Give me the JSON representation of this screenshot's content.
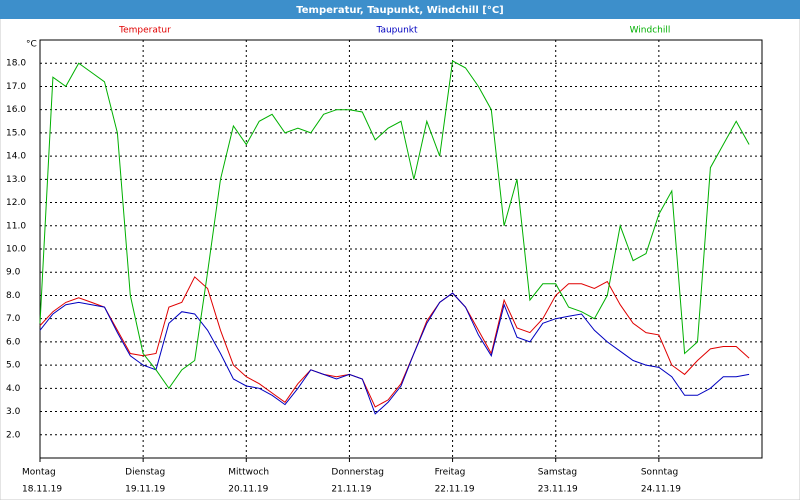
{
  "chart_data": {
    "type": "line",
    "title": "Temperatur, Taupunkt, Windchill [°C]",
    "y_unit_label": "°C",
    "categories": [
      "Montag",
      null,
      null,
      null,
      null,
      null,
      null,
      null,
      "Dienstag",
      null,
      null,
      null,
      null,
      null,
      null,
      null,
      "Mittwoch",
      null,
      null,
      null,
      null,
      null,
      null,
      null,
      "Donnerstag",
      null,
      null,
      null,
      null,
      null,
      null,
      null,
      "Freitag",
      null,
      null,
      null,
      null,
      null,
      null,
      null,
      "Samstag",
      null,
      null,
      null,
      null,
      null,
      null,
      null,
      "Sonntag",
      null,
      null,
      null,
      null,
      null,
      null,
      null
    ],
    "category_dates": [
      "18.11.19",
      null,
      null,
      null,
      null,
      null,
      null,
      null,
      "19.11.19",
      null,
      null,
      null,
      null,
      null,
      null,
      null,
      "20.11.19",
      null,
      null,
      null,
      null,
      null,
      null,
      null,
      "21.11.19",
      null,
      null,
      null,
      null,
      null,
      null,
      null,
      "22.11.19",
      null,
      null,
      null,
      null,
      null,
      null,
      null,
      "23.11.19",
      null,
      null,
      null,
      null,
      null,
      null,
      null,
      "24.11.19",
      null,
      null,
      null,
      null,
      null,
      null,
      null
    ],
    "series": [
      {
        "name": "Temperatur",
        "color": "#e00000",
        "values": [
          6.7,
          7.3,
          7.7,
          7.9,
          7.7,
          7.5,
          6.5,
          5.5,
          5.4,
          5.5,
          7.5,
          7.7,
          8.8,
          8.3,
          6.5,
          5.0,
          4.5,
          4.2,
          3.8,
          3.4,
          4.2,
          4.8,
          4.6,
          4.5,
          4.6,
          4.4,
          3.2,
          3.5,
          4.2,
          5.5,
          6.9,
          7.7,
          8.1,
          7.5,
          6.5,
          5.5,
          7.8,
          6.6,
          6.4,
          7.0,
          8.0,
          8.5,
          8.5,
          8.3,
          8.6,
          7.6,
          6.8,
          6.4,
          6.3,
          5.0,
          4.6,
          5.2,
          5.7,
          5.8,
          5.8,
          5.3
        ]
      },
      {
        "name": "Taupunkt",
        "color": "#0000c0",
        "values": [
          6.5,
          7.2,
          7.6,
          7.7,
          7.6,
          7.5,
          6.4,
          5.4,
          5.0,
          4.8,
          6.8,
          7.3,
          7.2,
          6.5,
          5.5,
          4.4,
          4.1,
          4.0,
          3.7,
          3.3,
          4.0,
          4.8,
          4.6,
          4.4,
          4.6,
          4.4,
          2.9,
          3.4,
          4.1,
          5.5,
          6.8,
          7.7,
          8.1,
          7.5,
          6.3,
          5.4,
          7.6,
          6.2,
          6.0,
          6.8,
          7.0,
          7.1,
          7.2,
          6.5,
          6.0,
          5.6,
          5.2,
          5.0,
          4.9,
          4.5,
          3.7,
          3.7,
          4.0,
          4.5,
          4.5,
          4.6
        ]
      },
      {
        "name": "Windchill",
        "color": "#00b000",
        "values": [
          6.8,
          17.4,
          17.0,
          18.0,
          17.6,
          17.2,
          15.0,
          8.0,
          5.5,
          4.8,
          4.0,
          4.8,
          5.2,
          9.0,
          13.0,
          15.3,
          14.5,
          15.5,
          15.8,
          15.0,
          15.2,
          15.0,
          15.8,
          16.0,
          16.0,
          15.9,
          14.7,
          15.2,
          15.5,
          13.0,
          15.5,
          14.0,
          18.1,
          17.8,
          17.0,
          16.0,
          11.0,
          13.0,
          7.8,
          8.5,
          8.5,
          7.5,
          7.3,
          7.0,
          8.0,
          11.0,
          9.5,
          9.8,
          11.5,
          12.5,
          5.5,
          6.0,
          13.5,
          14.5,
          15.5,
          14.5
        ]
      }
    ],
    "ylim": [
      1,
      19
    ],
    "yticks": [
      {
        "value": 2,
        "label": "2.0"
      },
      {
        "value": 3,
        "label": "3.0"
      },
      {
        "value": 4,
        "label": "4.0"
      },
      {
        "value": 5,
        "label": "5.0"
      },
      {
        "value": 6,
        "label": "6.0"
      },
      {
        "value": 7,
        "label": "7.0"
      },
      {
        "value": 8,
        "label": "8.0"
      },
      {
        "value": 9,
        "label": "9.0"
      },
      {
        "value": 10,
        "label": "10.0"
      },
      {
        "value": 11,
        "label": "11.0"
      },
      {
        "value": 12,
        "label": "12.0"
      },
      {
        "value": 13,
        "label": "13.0"
      },
      {
        "value": 14,
        "label": "14.0"
      },
      {
        "value": 15,
        "label": "15.0"
      },
      {
        "value": 16,
        "label": "16.0"
      },
      {
        "value": 17,
        "label": "17.0"
      },
      {
        "value": 18,
        "label": "18.0"
      }
    ],
    "grid": true
  }
}
